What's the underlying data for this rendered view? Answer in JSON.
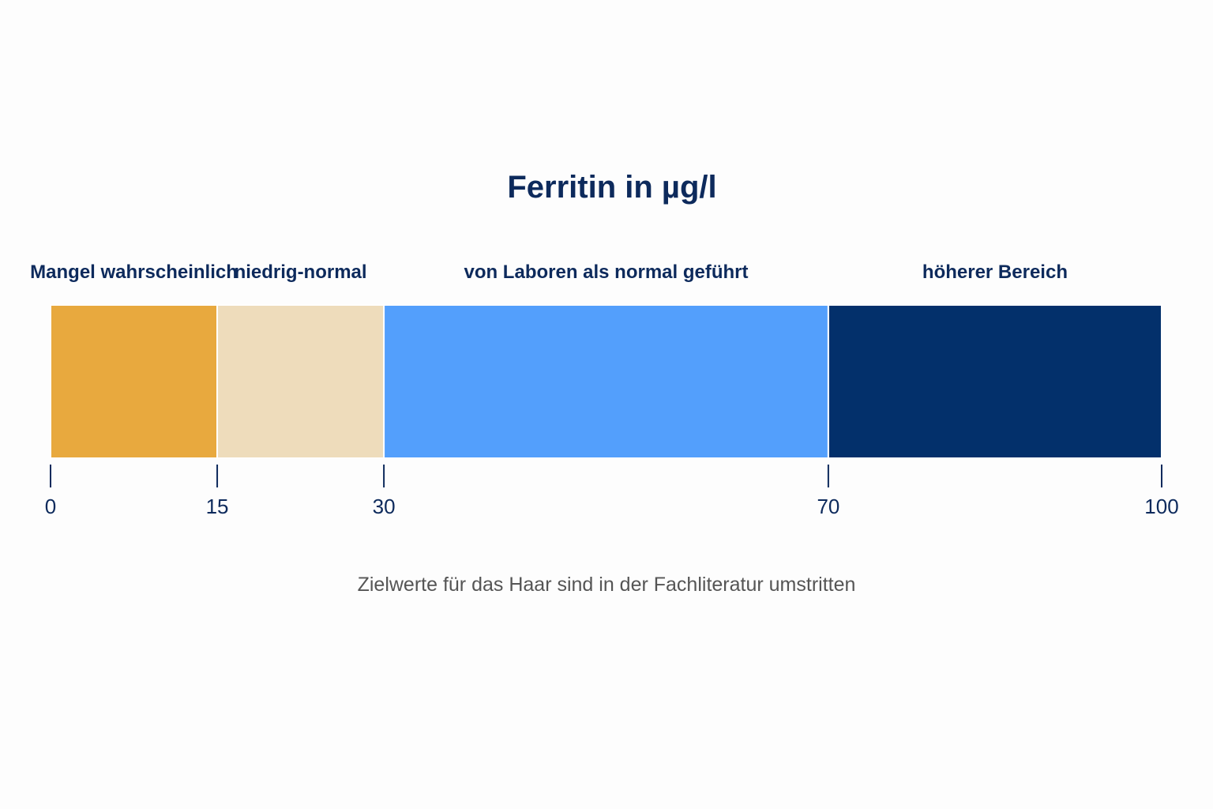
{
  "chart_data": {
    "type": "bar",
    "title": "Ferritin in µg/l",
    "note": "Zielwerte für das Haar sind in der Fachliteratur umstritten",
    "xlim": [
      0,
      100
    ],
    "grid": false,
    "legend": "none",
    "segments": [
      {
        "label": "Mangel wahrscheinlich",
        "from": 0,
        "to": 15,
        "color": "#e8a93e"
      },
      {
        "label": "niedrig-normal",
        "from": 15,
        "to": 30,
        "color": "#eedcbb"
      },
      {
        "label": "von Laboren als normal geführt",
        "from": 30,
        "to": 70,
        "color": "#539ffc"
      },
      {
        "label": "höherer Bereich",
        "from": 70,
        "to": 100,
        "color": "#03306b"
      }
    ],
    "ticks": [
      {
        "value": 0,
        "label": "0"
      },
      {
        "value": 15,
        "label": "15"
      },
      {
        "value": 30,
        "label": "30"
      },
      {
        "value": 70,
        "label": "70"
      },
      {
        "value": 100,
        "label": "100"
      }
    ],
    "tick_color": "#0d2a5c"
  }
}
